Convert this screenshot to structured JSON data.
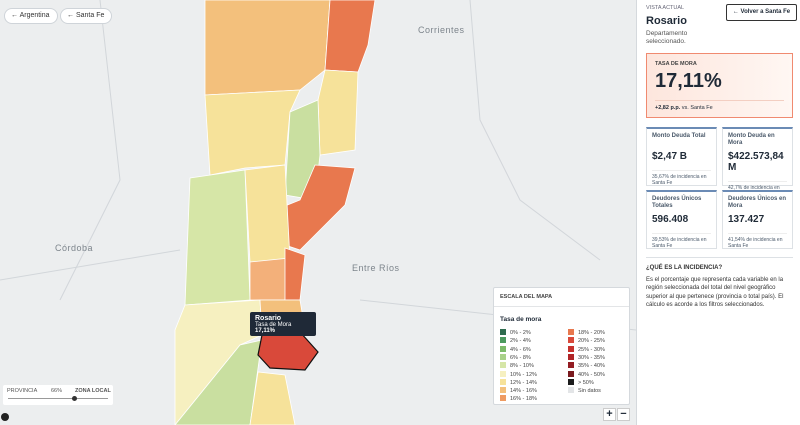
{
  "breadcrumbs": [
    "Argentina",
    "Santa Fe"
  ],
  "map": {
    "labels": [
      "Corrientes",
      "Entre Ríos",
      "Córdoba"
    ],
    "tooltip": {
      "title": "Rosario",
      "label": "Tasa de Mora",
      "value": "17,11%"
    },
    "slider": {
      "left": "PROVINCIA",
      "value": "66%",
      "right": "ZONA LOCAL"
    },
    "zoom": [
      "+",
      "−"
    ],
    "legend": {
      "title": "ESCALA DEL MAPA",
      "subtitle": "Tasa de mora",
      "items": [
        {
          "label": "0% - 2%",
          "color": "#2e6b4e"
        },
        {
          "label": "2% - 4%",
          "color": "#4c9a5f"
        },
        {
          "label": "4% - 6%",
          "color": "#7dbb6a"
        },
        {
          "label": "6% - 8%",
          "color": "#a9d18a"
        },
        {
          "label": "8% - 10%",
          "color": "#d6e6a7"
        },
        {
          "label": "10% - 12%",
          "color": "#f6f0c0"
        },
        {
          "label": "12% - 14%",
          "color": "#f6e29a"
        },
        {
          "label": "14% - 16%",
          "color": "#f3c07c"
        },
        {
          "label": "16% - 18%",
          "color": "#ee9b62"
        },
        {
          "label": "18% - 20%",
          "color": "#e8784e"
        },
        {
          "label": "20% - 25%",
          "color": "#d9493a"
        },
        {
          "label": "25% - 30%",
          "color": "#c6312d"
        },
        {
          "label": "30% - 35%",
          "color": "#b02427"
        },
        {
          "label": "35% - 40%",
          "color": "#931c22"
        },
        {
          "label": "40% - 50%",
          "color": "#7a1a1e"
        },
        {
          "label": "> 50%",
          "color": "#1c1c1c"
        },
        {
          "label": "Sin datos",
          "color": "#e3e5e7"
        }
      ]
    }
  },
  "panel": {
    "kicker": "VISTA ACTUAL",
    "title": "Rosario",
    "subtitle": "Departamento seleccionado.",
    "back": "Volver a Santa Fe",
    "hero": {
      "label": "TASA DE MORA",
      "value": "17,11%",
      "delta": "+2,82 p.p.",
      "delta_ref": "vs. Santa Fe"
    },
    "cards": [
      {
        "title": "Monto Deuda Total",
        "value": "$2,47 B",
        "note": "35,67% de incidencia en Santa Fe"
      },
      {
        "title": "Monto Deuda en Mora",
        "value": "$422.573,84 M",
        "note": "42,7% de incidencia en Santa Fe"
      },
      {
        "title": "Deudores Únicos Totales",
        "value": "596.408",
        "note": "39,53% de incidencia en Santa Fe"
      },
      {
        "title": "Deudores Únicos en Mora",
        "value": "137.427",
        "note": "41,54% de incidencia en Santa Fe"
      }
    ],
    "info": {
      "title": "¿QUÉ ES LA INCIDENCIA?",
      "text": "Es el porcentaje que representa cada variable en la región seleccionada del total del nivel geográfico superior al que pertenece (provincia o total país). El cálculo es acorde a los filtros seleccionados."
    }
  }
}
